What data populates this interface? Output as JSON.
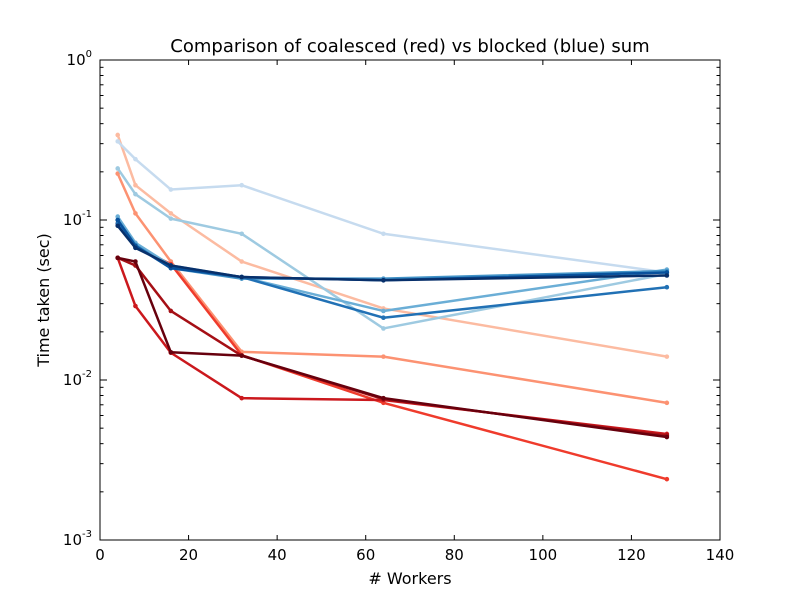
{
  "chart_data": {
    "type": "line",
    "title": "Comparison of coalesced (red) vs blocked (blue) sum",
    "xlabel": "# Workers",
    "ylabel": "Time taken (sec)",
    "xlim": [
      0,
      140
    ],
    "ylim": [
      0.001,
      1
    ],
    "yscale": "log",
    "grid": false,
    "x_ticks": [
      "0",
      "20",
      "40",
      "60",
      "80",
      "100",
      "120",
      "140"
    ],
    "y_ticks": [
      {
        "base": "10",
        "exp": "0"
      },
      {
        "base": "10",
        "exp": "-1"
      },
      {
        "base": "10",
        "exp": "-2"
      },
      {
        "base": "10",
        "exp": "-3"
      }
    ],
    "x": [
      4,
      8,
      16,
      32,
      64,
      128
    ],
    "series": [
      {
        "color": "#fcbba1",
        "values": [
          0.34,
          0.165,
          0.11,
          0.055,
          0.028,
          0.014
        ]
      },
      {
        "color": "#fc9272",
        "values": [
          0.195,
          0.11,
          0.055,
          0.015,
          0.014,
          0.0072
        ]
      },
      {
        "color": "#ef3b2c",
        "values": [
          0.095,
          0.068,
          0.053,
          0.0143,
          0.0072,
          0.0024
        ]
      },
      {
        "color": "#cb181d",
        "values": [
          0.058,
          0.029,
          0.0148,
          0.0077,
          0.0075,
          0.0046
        ]
      },
      {
        "color": "#a50f15",
        "values": [
          0.058,
          0.052,
          0.027,
          0.0142,
          0.0076,
          0.0045
        ]
      },
      {
        "color": "#67000d",
        "values": [
          0.058,
          0.055,
          0.0149,
          0.0142,
          0.0077,
          0.0044
        ]
      },
      {
        "color": "#c6dbef",
        "values": [
          0.31,
          0.24,
          0.155,
          0.165,
          0.082,
          0.047
        ]
      },
      {
        "color": "#9ecae1",
        "values": [
          0.21,
          0.145,
          0.102,
          0.082,
          0.021,
          0.046
        ]
      },
      {
        "color": "#6baed6",
        "values": [
          0.105,
          0.072,
          0.052,
          0.044,
          0.027,
          0.049
        ]
      },
      {
        "color": "#4292c6",
        "values": [
          0.1,
          0.07,
          0.05,
          0.043,
          0.043,
          0.048
        ]
      },
      {
        "color": "#2171b5",
        "values": [
          0.095,
          0.068,
          0.051,
          0.044,
          0.0245,
          0.038
        ]
      },
      {
        "color": "#08519c",
        "values": [
          0.1,
          0.069,
          0.05,
          0.044,
          0.042,
          0.047
        ]
      },
      {
        "color": "#08306b",
        "values": [
          0.092,
          0.067,
          0.052,
          0.044,
          0.042,
          0.045
        ]
      }
    ]
  }
}
